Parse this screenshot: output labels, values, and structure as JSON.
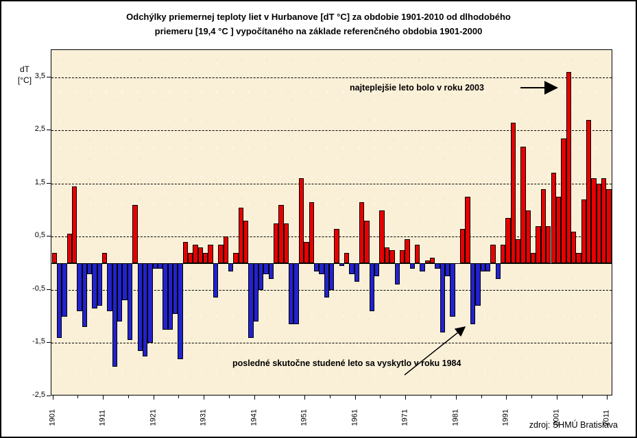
{
  "title": {
    "line1": "Odchýlky priemernej teploty liet v Hurbanove [dT °C] za obdobie 1901-2010 od dlhodobého",
    "line2": "priemeru [19,4 °C ] vypočítaného na základe referenčného obdobia 1901-2000"
  },
  "axis": {
    "y_label_line1": "dT",
    "y_label_line2": "[°C]",
    "y_tick_labels": [
      "3,5",
      "2,5",
      "1,5",
      "0,5",
      "-0,5",
      "-1,5",
      "-2,5"
    ],
    "y_tick_values": [
      3.5,
      2.5,
      1.5,
      0.5,
      -0.5,
      -1.5,
      -2.5
    ],
    "x_tick_labels": [
      "1901",
      "1911",
      "1921",
      "1931",
      "1941",
      "1951",
      "1961",
      "1971",
      "1981",
      "1991",
      "2001",
      "2011"
    ]
  },
  "annotations": {
    "warmest": "najteplejšie leto bolo v roku 2003",
    "coldest": "posledné skutočne studené leto sa vyskytlo v roku 1984"
  },
  "source_note": "zdroj: SHMÚ Bratislava",
  "chart_data": {
    "type": "bar",
    "title": "Odchýlky priemernej teploty liet v Hurbanove [dT °C] za obdobie 1901-2010 od dlhodobého priemeru [19,4 °C ] vypočítaného na základe referenčného obdobia 1901-2000",
    "xlabel": "",
    "ylabel": "dT [°C]",
    "ylim": [
      -2.5,
      4.0
    ],
    "grid": "horizontal-dashed",
    "legend": "none",
    "reference_mean_c": "19,4",
    "positive_color": "#e80000",
    "negative_color": "#2222ce",
    "categories": [
      1901,
      1902,
      1903,
      1904,
      1905,
      1906,
      1907,
      1908,
      1909,
      1910,
      1911,
      1912,
      1913,
      1914,
      1915,
      1916,
      1917,
      1918,
      1919,
      1920,
      1921,
      1922,
      1923,
      1924,
      1925,
      1926,
      1927,
      1928,
      1929,
      1930,
      1931,
      1932,
      1933,
      1934,
      1935,
      1936,
      1937,
      1938,
      1939,
      1940,
      1941,
      1942,
      1943,
      1944,
      1945,
      1946,
      1947,
      1948,
      1949,
      1950,
      1951,
      1952,
      1953,
      1954,
      1955,
      1956,
      1957,
      1958,
      1959,
      1960,
      1961,
      1962,
      1963,
      1964,
      1965,
      1966,
      1967,
      1968,
      1969,
      1970,
      1971,
      1972,
      1973,
      1974,
      1975,
      1976,
      1977,
      1978,
      1979,
      1980,
      1981,
      1982,
      1983,
      1984,
      1985,
      1986,
      1987,
      1988,
      1989,
      1990,
      1991,
      1992,
      1993,
      1994,
      1995,
      1996,
      1997,
      1998,
      1999,
      2000,
      2001,
      2002,
      2003,
      2004,
      2005,
      2006,
      2007,
      2008,
      2009,
      2010,
      2011
    ],
    "values": [
      0.2,
      -1.4,
      -1.0,
      0.55,
      1.45,
      -0.9,
      -1.2,
      -0.2,
      -0.85,
      -0.8,
      0.2,
      -0.9,
      -1.95,
      -1.1,
      -0.7,
      -1.45,
      1.1,
      -1.65,
      -1.75,
      -1.5,
      -0.1,
      -0.1,
      -1.25,
      -1.25,
      -0.95,
      -1.8,
      0.4,
      0.2,
      0.35,
      0.3,
      0.2,
      0.35,
      -0.65,
      0.35,
      0.5,
      -0.15,
      0.2,
      1.05,
      0.8,
      -1.4,
      -1.1,
      -0.5,
      -0.2,
      -0.3,
      0.75,
      1.1,
      0.75,
      -1.15,
      -1.15,
      1.6,
      0.4,
      1.15,
      -0.15,
      -0.2,
      -0.65,
      -0.5,
      0.65,
      -0.05,
      0.2,
      -0.2,
      -0.35,
      1.15,
      0.8,
      -0.9,
      -0.25,
      1.0,
      0.3,
      0.25,
      -0.4,
      0.25,
      0.45,
      -0.1,
      0.35,
      -0.15,
      0.05,
      0.1,
      -0.1,
      -1.3,
      -0.25,
      -1.0,
      0.0,
      0.65,
      1.25,
      -1.15,
      -0.8,
      -0.15,
      -0.15,
      0.35,
      -0.3,
      0.35,
      0.85,
      2.65,
      0.45,
      2.2,
      1.0,
      0.2,
      0.7,
      1.4,
      0.7,
      1.7,
      1.25,
      2.35,
      3.6,
      0.6,
      0.2,
      1.2,
      2.7,
      1.6,
      1.5,
      1.6,
      1.4
    ],
    "annotations": [
      {
        "text": "najteplejšie leto bolo v roku 2003",
        "target_year": 2003
      },
      {
        "text": "posledné skutočne studené leto sa vyskytlo v roku 1984",
        "target_year": 1984
      }
    ]
  }
}
